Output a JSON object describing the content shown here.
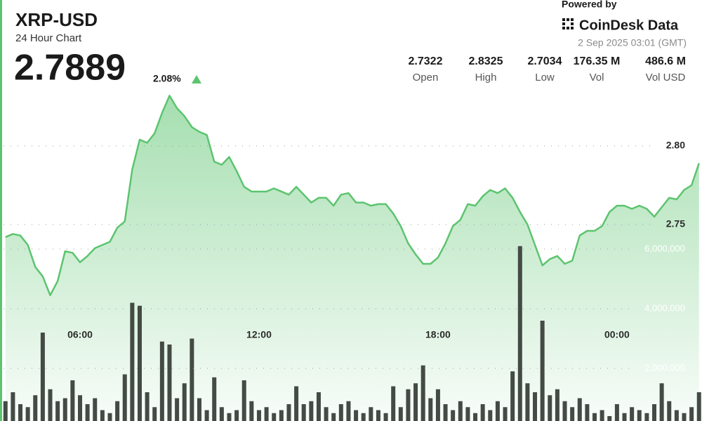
{
  "header": {
    "title": "XRP-USD",
    "subtitle": "24 Hour Chart",
    "price": "2.7889",
    "change": "2.08%",
    "powered_by": "Powered by",
    "brand": "CoinDesk Data",
    "timestamp": "2 Sep 2025 03:01 (GMT)",
    "stats": [
      {
        "value": "2.7322",
        "label": "Open"
      },
      {
        "value": "2.8325",
        "label": "High"
      },
      {
        "value": "2.7034",
        "label": "Low"
      },
      {
        "value": "176.35 M",
        "label": "Vol"
      },
      {
        "value": "486.6 M",
        "label": "Vol USD"
      }
    ]
  },
  "chart_data": {
    "type": "combo",
    "x": [
      3.5,
      3.75,
      4,
      4.25,
      4.5,
      4.75,
      5,
      5.25,
      5.5,
      5.75,
      6,
      6.25,
      6.5,
      6.75,
      7,
      7.25,
      7.5,
      7.75,
      8,
      8.25,
      8.5,
      8.75,
      9,
      9.25,
      9.5,
      9.75,
      10,
      10.25,
      10.5,
      10.75,
      11,
      11.25,
      11.5,
      11.75,
      12,
      12.25,
      12.5,
      12.75,
      13,
      13.25,
      13.5,
      13.75,
      14,
      14.25,
      14.5,
      14.75,
      15,
      15.25,
      15.5,
      15.75,
      16,
      16.25,
      16.5,
      16.75,
      17,
      17.25,
      17.5,
      17.75,
      18,
      18.25,
      18.5,
      18.75,
      19,
      19.25,
      19.5,
      19.75,
      20,
      20.25,
      20.5,
      20.75,
      21,
      21.25,
      21.5,
      21.75,
      22,
      22.25,
      22.5,
      22.75,
      23,
      23.25,
      23.5,
      23.75,
      24,
      24.25,
      24.5,
      24.75,
      25,
      25.25,
      25.5,
      25.75,
      26,
      26.25,
      26.5,
      26.75
    ],
    "xlim": [
      3.435,
      26.85
    ],
    "xticks": [
      {
        "value": 6,
        "label": "06:00"
      },
      {
        "value": 12,
        "label": "12:00"
      },
      {
        "value": 18,
        "label": "18:00"
      },
      {
        "value": 24,
        "label": "00:00"
      }
    ],
    "ylim": [
      2.72,
      2.84
    ],
    "yticks": [
      {
        "value": 2.8,
        "label": "2.80"
      },
      2.75
    ],
    "y2lim": [
      0,
      8000000
    ],
    "y2ticks": [
      {
        "value": 2000000,
        "label": "2,000,000"
      },
      {
        "value": 4000000,
        "label": "4,000,000"
      },
      {
        "value": 6000000,
        "label": "6,000,000"
      }
    ],
    "grid": true,
    "series": [
      {
        "type": "area",
        "color": "#5cc46f",
        "values": [
          2.742,
          2.744,
          2.743,
          2.737,
          2.723,
          2.717,
          2.705,
          2.714,
          2.733,
          2.732,
          2.726,
          2.73,
          2.735,
          2.737,
          2.739,
          2.748,
          2.752,
          2.785,
          2.804,
          2.802,
          2.808,
          2.821,
          2.832,
          2.824,
          2.819,
          2.812,
          2.809,
          2.807,
          2.79,
          2.788,
          2.793,
          2.784,
          2.774,
          2.771,
          2.771,
          2.771,
          2.773,
          2.771,
          2.769,
          2.774,
          2.769,
          2.764,
          2.767,
          2.767,
          2.762,
          2.769,
          2.77,
          2.764,
          2.764,
          2.762,
          2.763,
          2.763,
          2.757,
          2.749,
          2.738,
          2.731,
          2.725,
          2.725,
          2.729,
          2.738,
          2.749,
          2.753,
          2.763,
          2.762,
          2.768,
          2.772,
          2.77,
          2.773,
          2.767,
          2.758,
          2.75,
          2.737,
          2.724,
          2.728,
          2.73,
          2.725,
          2.727,
          2.743,
          2.746,
          2.746,
          2.749,
          2.758,
          2.762,
          2.762,
          2.76,
          2.762,
          2.76,
          2.755,
          2.761,
          2.767,
          2.766,
          2.772,
          2.775,
          2.789
        ]
      },
      {
        "type": "bar",
        "axis": "y2",
        "color": "#444a44",
        "values": [
          900000,
          1200000,
          800000,
          700000,
          1100000,
          3200000,
          1300000,
          900000,
          1000000,
          1600000,
          1100000,
          800000,
          1000000,
          600000,
          500000,
          900000,
          1800000,
          4200000,
          4100000,
          1200000,
          700000,
          2900000,
          2800000,
          1000000,
          1500000,
          3000000,
          1000000,
          600000,
          1700000,
          700000,
          500000,
          600000,
          1600000,
          900000,
          600000,
          700000,
          500000,
          600000,
          800000,
          1400000,
          800000,
          900000,
          1200000,
          700000,
          500000,
          800000,
          900000,
          600000,
          500000,
          700000,
          600000,
          500000,
          1400000,
          700000,
          1300000,
          1500000,
          2100000,
          1000000,
          1300000,
          800000,
          600000,
          900000,
          700000,
          500000,
          800000,
          600000,
          900000,
          700000,
          1900000,
          6100000,
          1500000,
          1200000,
          3600000,
          1100000,
          1300000,
          900000,
          700000,
          1000000,
          800000,
          500000,
          600000,
          400000,
          800000,
          500000,
          700000,
          600000,
          500000,
          800000,
          1500000,
          900000,
          600000,
          500000,
          700000,
          1200000
        ]
      }
    ]
  }
}
